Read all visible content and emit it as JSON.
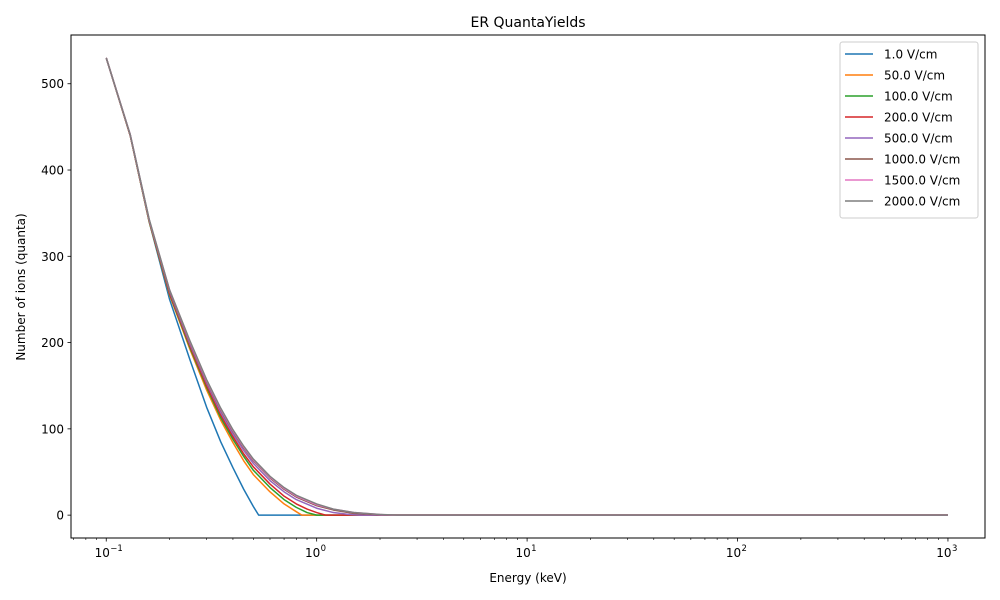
{
  "chart_data": {
    "type": "line",
    "title": "ER QuantaYields",
    "xlabel": "Energy (keV)",
    "ylabel": "Number of ions (quanta)",
    "xscale": "log",
    "xlim": [
      0.068,
      1500
    ],
    "ylim": [
      -26.5,
      556.5
    ],
    "x_ticks": [
      {
        "value": 0.1,
        "base": "10",
        "exp": "−1"
      },
      {
        "value": 1,
        "base": "10",
        "exp": "0"
      },
      {
        "value": 10,
        "base": "10",
        "exp": "1"
      },
      {
        "value": 100,
        "base": "10",
        "exp": "2"
      },
      {
        "value": 1000,
        "base": "10",
        "exp": "3"
      }
    ],
    "y_ticks": [
      0,
      100,
      200,
      300,
      400,
      500
    ],
    "grid": false,
    "legend": "top-right",
    "series": [
      {
        "name": "1.0 V/cm",
        "color": "#1f77b4",
        "x": [
          0.1,
          0.13,
          0.16,
          0.2,
          0.25,
          0.3,
          0.35,
          0.4,
          0.45,
          0.5,
          0.53,
          1,
          10,
          100,
          1000
        ],
        "y": [
          530,
          440,
          340,
          250,
          180,
          125,
          85,
          55,
          30,
          10,
          0,
          0,
          0,
          0,
          0
        ]
      },
      {
        "name": "50.0 V/cm",
        "color": "#ff7f0e",
        "x": [
          0.1,
          0.13,
          0.16,
          0.2,
          0.25,
          0.3,
          0.35,
          0.4,
          0.45,
          0.5,
          0.6,
          0.7,
          0.8,
          0.85,
          1,
          10,
          100,
          1000
        ],
        "y": [
          530,
          440,
          340,
          255,
          192,
          145,
          110,
          84,
          63,
          47,
          27,
          13,
          4,
          0,
          0,
          0,
          0,
          0
        ]
      },
      {
        "name": "100.0 V/cm",
        "color": "#2ca02c",
        "x": [
          0.1,
          0.13,
          0.16,
          0.2,
          0.25,
          0.3,
          0.35,
          0.4,
          0.45,
          0.5,
          0.6,
          0.7,
          0.8,
          0.9,
          1,
          10,
          100,
          1000
        ],
        "y": [
          530,
          440,
          340,
          256,
          194,
          148,
          113,
          88,
          68,
          52,
          32,
          18,
          9,
          3,
          0,
          0,
          0,
          0
        ]
      },
      {
        "name": "200.0 V/cm",
        "color": "#d62728",
        "x": [
          0.1,
          0.13,
          0.16,
          0.2,
          0.25,
          0.3,
          0.35,
          0.4,
          0.45,
          0.5,
          0.6,
          0.7,
          0.8,
          0.9,
          1,
          1.1,
          10,
          100,
          1000
        ],
        "y": [
          530,
          440,
          341,
          257,
          196,
          150,
          116,
          91,
          71,
          56,
          36,
          22,
          13,
          7,
          3,
          0,
          0,
          0,
          0
        ]
      },
      {
        "name": "500.0 V/cm",
        "color": "#9467bd",
        "x": [
          0.1,
          0.13,
          0.16,
          0.2,
          0.25,
          0.3,
          0.35,
          0.4,
          0.45,
          0.5,
          0.6,
          0.7,
          0.8,
          1,
          1.2,
          1.4,
          1.6,
          10,
          100,
          1000
        ],
        "y": [
          530,
          441,
          342,
          259,
          198,
          153,
          119,
          94,
          75,
          60,
          40,
          27,
          18,
          8,
          3,
          1,
          0,
          0,
          0,
          0
        ]
      },
      {
        "name": "1000.0 V/cm",
        "color": "#8c564b",
        "x": [
          0.1,
          0.13,
          0.16,
          0.2,
          0.25,
          0.3,
          0.35,
          0.4,
          0.45,
          0.5,
          0.6,
          0.7,
          0.8,
          1,
          1.2,
          1.5,
          2,
          2.3,
          10,
          100,
          1000
        ],
        "y": [
          530,
          441,
          342,
          260,
          200,
          155,
          122,
          97,
          78,
          63,
          43,
          30,
          21,
          11,
          6,
          2,
          0.5,
          0,
          0,
          0,
          0
        ]
      },
      {
        "name": "1500.0 V/cm",
        "color": "#e377c2",
        "x": [
          0.1,
          0.13,
          0.16,
          0.2,
          0.25,
          0.3,
          0.35,
          0.4,
          0.45,
          0.5,
          0.6,
          0.7,
          0.8,
          1,
          1.2,
          1.5,
          2,
          2.3,
          10,
          100,
          1000
        ],
        "y": [
          530,
          441,
          342,
          261,
          201,
          156,
          123,
          98,
          79,
          64,
          44,
          31,
          22,
          12,
          7,
          3,
          0.7,
          0,
          0,
          0,
          0
        ]
      },
      {
        "name": "2000.0 V/cm",
        "color": "#7f7f7f",
        "x": [
          0.1,
          0.13,
          0.16,
          0.2,
          0.25,
          0.3,
          0.35,
          0.4,
          0.45,
          0.5,
          0.6,
          0.7,
          0.8,
          1,
          1.2,
          1.5,
          2,
          2.4,
          10,
          100,
          1000
        ],
        "y": [
          530,
          441,
          343,
          261,
          202,
          157,
          124,
          99,
          80,
          65,
          45,
          32,
          23,
          13,
          7,
          3,
          0.8,
          0,
          0,
          0,
          0
        ]
      }
    ]
  }
}
